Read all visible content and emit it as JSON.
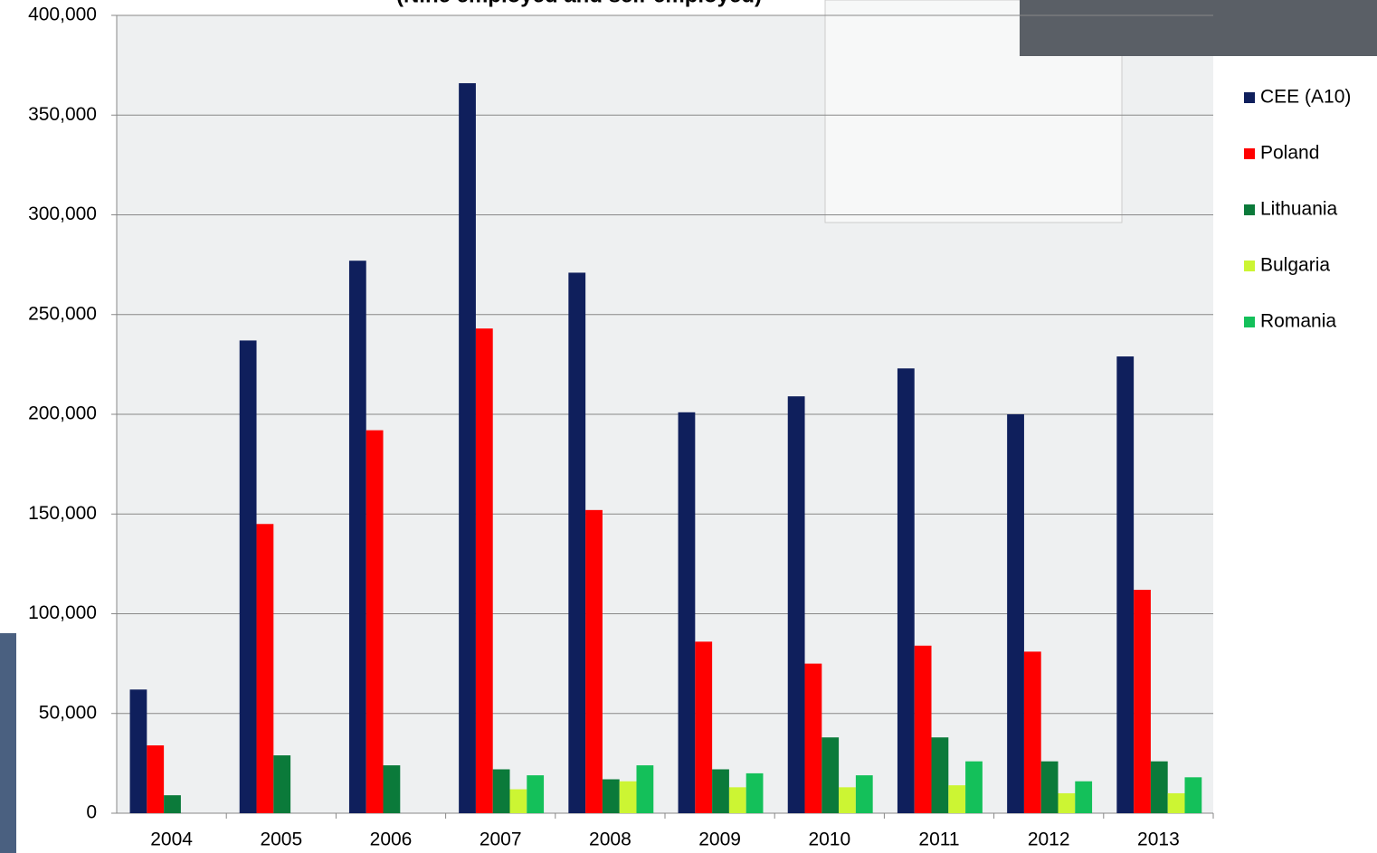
{
  "chart_data": {
    "type": "bar",
    "title": "(Nine employed and self-employed)",
    "categories": [
      "2004",
      "2005",
      "2006",
      "2007",
      "2008",
      "2009",
      "2010",
      "2011",
      "2012",
      "2013"
    ],
    "series": [
      {
        "name": "CEE (A10)",
        "color": "#0f1f5c",
        "values": [
          62000,
          237000,
          277000,
          366000,
          271000,
          201000,
          209000,
          223000,
          200000,
          229000
        ]
      },
      {
        "name": "Poland",
        "color": "#ff0000",
        "values": [
          34000,
          145000,
          192000,
          243000,
          152000,
          86000,
          75000,
          84000,
          81000,
          112000
        ]
      },
      {
        "name": "Lithuania",
        "color": "#0b7a3a",
        "values": [
          9000,
          29000,
          24000,
          22000,
          17000,
          22000,
          38000,
          38000,
          26000,
          26000
        ]
      },
      {
        "name": "Bulgaria",
        "color": "#ccf533",
        "values": [
          null,
          null,
          null,
          12000,
          16000,
          13000,
          13000,
          14000,
          10000,
          10000
        ]
      },
      {
        "name": "Romania",
        "color": "#14c05a",
        "values": [
          null,
          null,
          null,
          19000,
          24000,
          20000,
          19000,
          26000,
          16000,
          18000
        ]
      }
    ],
    "ylim": [
      0,
      400000
    ],
    "yticks": [
      0,
      {
        "value": 50000,
        "label": "50,000"
      },
      {
        "value": 100000,
        "label": "100,000"
      },
      {
        "value": 150000,
        "label": "150,000"
      },
      {
        "value": 200000,
        "label": "200,000"
      },
      {
        "value": 250000,
        "label": "250,000"
      },
      {
        "value": 300000,
        "label": "300,000"
      },
      {
        "value": 350000,
        "label": "350,000"
      },
      {
        "value": 400000,
        "label": "400,000"
      }
    ],
    "grid": true,
    "legend": "right"
  }
}
